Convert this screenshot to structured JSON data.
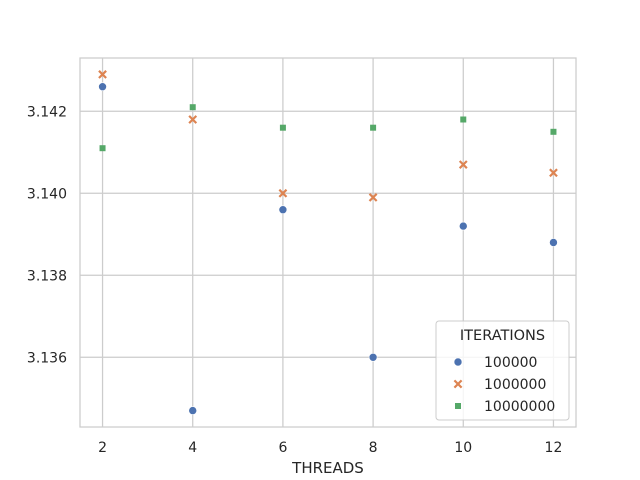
{
  "chart_data": {
    "type": "scatter",
    "title": "",
    "xlabel": "THREADS",
    "ylabel": "",
    "xlim": [
      1.5,
      12.5
    ],
    "ylim": [
      3.1343,
      3.1433
    ],
    "xticks": [
      2,
      4,
      6,
      8,
      10,
      12
    ],
    "xtick_labels": [
      "2",
      "4",
      "6",
      "8",
      "10",
      "12"
    ],
    "yticks": [
      3.136,
      3.138,
      3.14,
      3.142
    ],
    "ytick_labels": [
      "3.136",
      "3.138",
      "3.140",
      "3.142"
    ],
    "grid": true,
    "legend": {
      "title": "ITERATIONS",
      "placement": "lower right"
    },
    "series": [
      {
        "name": "100000",
        "color": "#4c72b0",
        "marker": "circle",
        "x": [
          2,
          4,
          6,
          8,
          10,
          12
        ],
        "y": [
          3.1426,
          3.1347,
          3.1396,
          3.136,
          3.1392,
          3.1388
        ]
      },
      {
        "name": "1000000",
        "color": "#dd8452",
        "marker": "x",
        "x": [
          2,
          4,
          6,
          8,
          10,
          12
        ],
        "y": [
          3.1429,
          3.1418,
          3.14,
          3.1399,
          3.1407,
          3.1405
        ]
      },
      {
        "name": "10000000",
        "color": "#55a868",
        "marker": "square",
        "x": [
          2,
          4,
          6,
          8,
          10,
          12
        ],
        "y": [
          3.1411,
          3.1421,
          3.1416,
          3.1416,
          3.1418,
          3.1415
        ]
      }
    ]
  }
}
